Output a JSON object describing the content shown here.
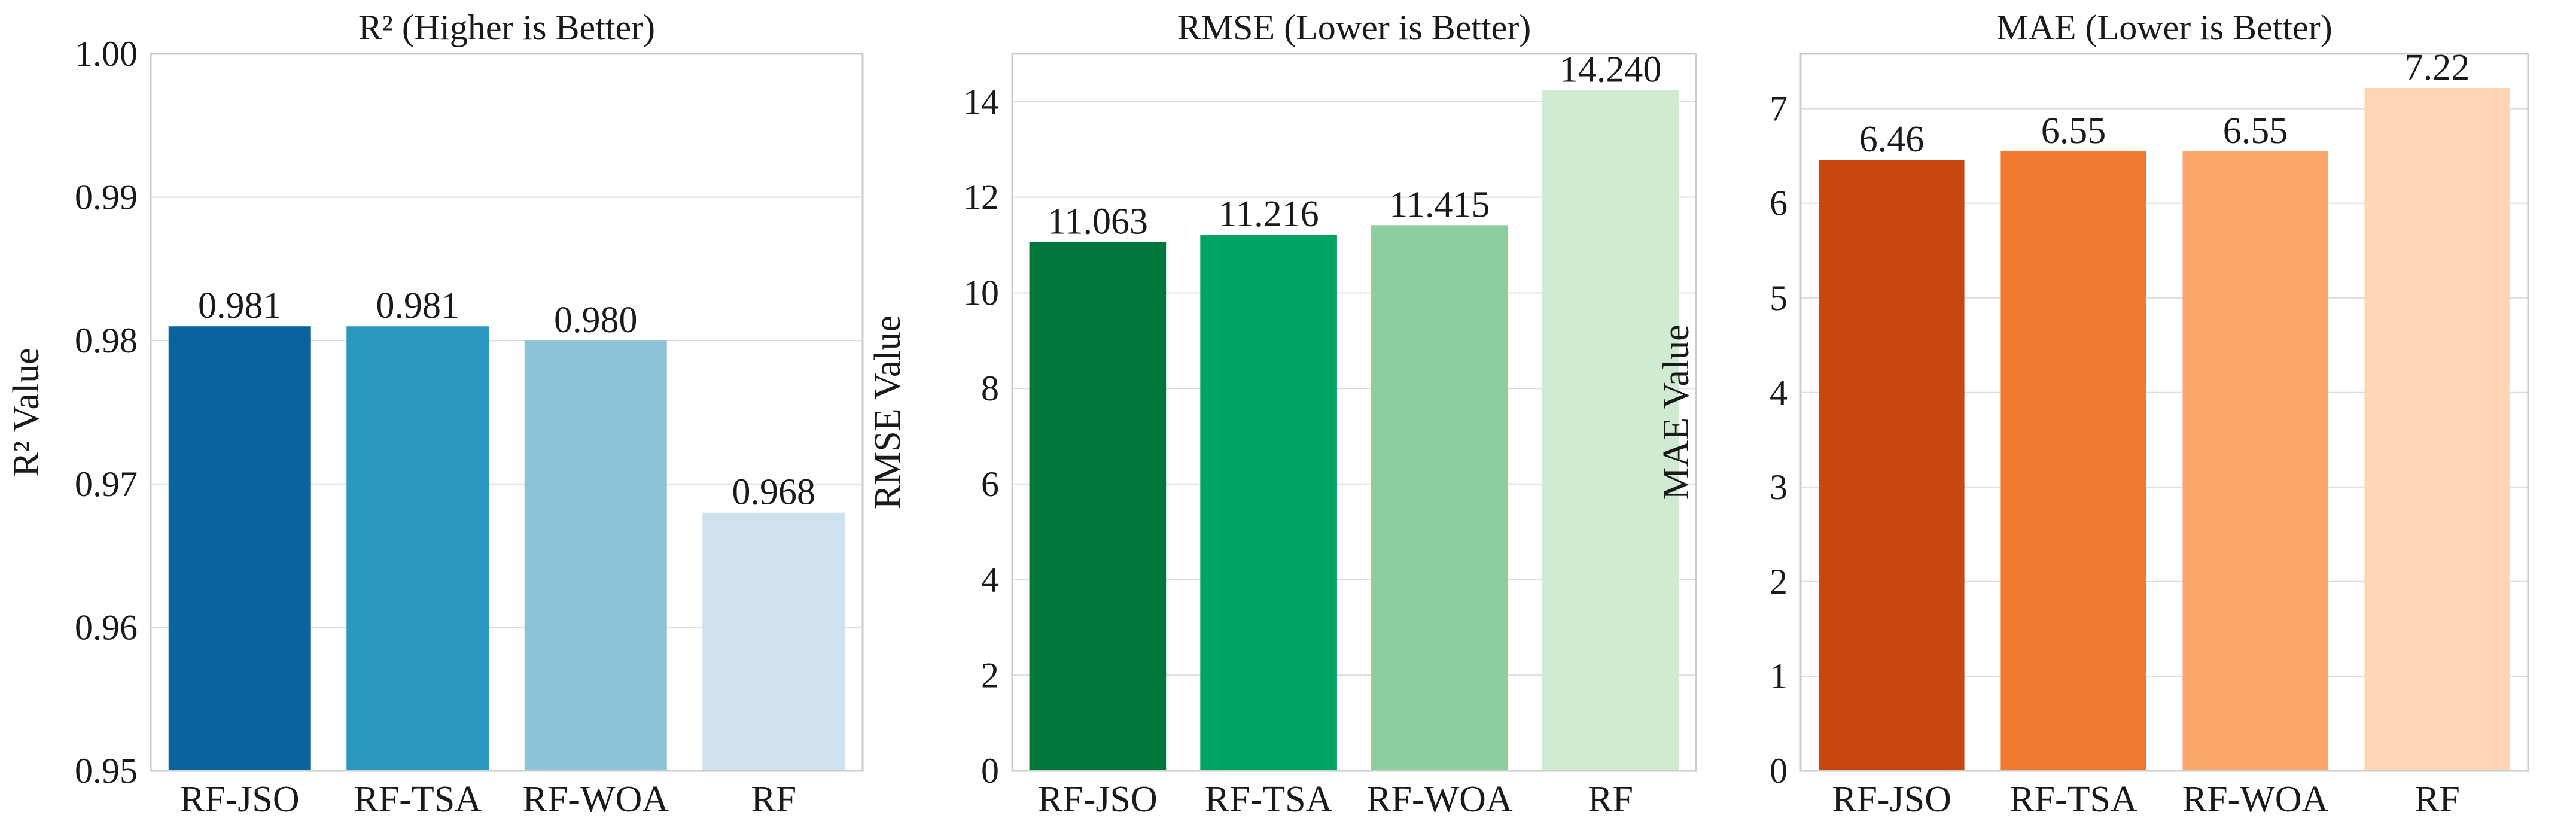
{
  "chart_data": [
    {
      "type": "bar",
      "title": "R² (Higher is Better)",
      "xlabel": "",
      "ylabel": "R² Value",
      "categories": [
        "RF-JSO",
        "RF-TSA",
        "RF-WOA",
        "RF"
      ],
      "values": [
        0.981,
        0.981,
        0.98,
        0.968
      ],
      "value_labels": [
        "0.981",
        "0.981",
        "0.980",
        "0.968"
      ],
      "colors": [
        "#08639e",
        "#2b98c2",
        "#8cc3d9",
        "#cfe1ee"
      ],
      "ylim": [
        0.95,
        1.0
      ],
      "yticks": [
        0.95,
        0.96,
        0.97,
        0.98,
        0.99,
        1.0
      ],
      "ytick_labels": [
        "0.95",
        "0.96",
        "0.97",
        "0.98",
        "0.99",
        "1.00"
      ],
      "grid": true,
      "legend": "none"
    },
    {
      "type": "bar",
      "title": "RMSE (Lower is Better)",
      "xlabel": "",
      "ylabel": "RMSE Value",
      "categories": [
        "RF-JSO",
        "RF-TSA",
        "RF-WOA",
        "RF"
      ],
      "values": [
        11.063,
        11.216,
        11.415,
        14.24
      ],
      "value_labels": [
        "11.063",
        "11.216",
        "11.415",
        "14.240"
      ],
      "colors": [
        "#00763a",
        "#00a462",
        "#8bcf9c",
        "#d1ebd3"
      ],
      "ylim": [
        0,
        15
      ],
      "yticks": [
        0,
        2,
        4,
        6,
        8,
        10,
        12,
        14
      ],
      "ytick_labels": [
        "0",
        "2",
        "4",
        "6",
        "8",
        "10",
        "12",
        "14"
      ],
      "grid": true,
      "legend": "none"
    },
    {
      "type": "bar",
      "title": "MAE (Lower is Better)",
      "xlabel": "",
      "ylabel": "MAE Value",
      "categories": [
        "RF-JSO",
        "RF-TSA",
        "RF-WOA",
        "RF"
      ],
      "values": [
        6.46,
        6.55,
        6.55,
        7.22
      ],
      "value_labels": [
        "6.46",
        "6.55",
        "6.55",
        "7.22"
      ],
      "colors": [
        "#c8470e",
        "#f27930",
        "#fca66c",
        "#fdd6b5"
      ],
      "ylim": [
        0,
        7.58
      ],
      "yticks": [
        0,
        1,
        2,
        3,
        4,
        5,
        6,
        7
      ],
      "ytick_labels": [
        "0",
        "1",
        "2",
        "3",
        "4",
        "5",
        "6",
        "7"
      ],
      "grid": true,
      "legend": "none"
    }
  ]
}
